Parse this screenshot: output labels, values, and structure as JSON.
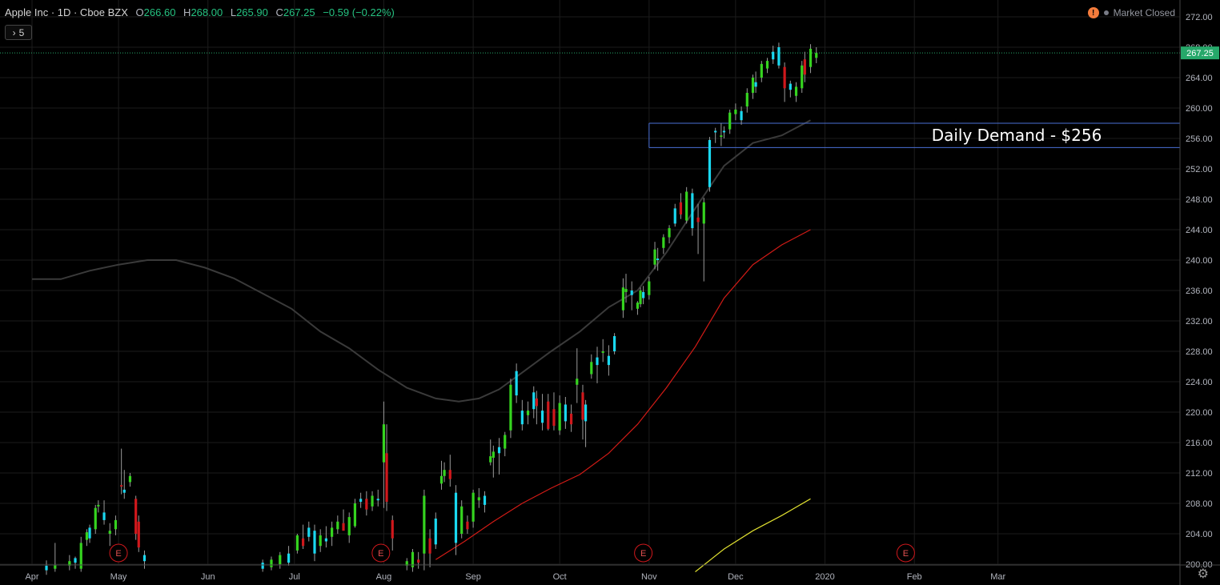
{
  "header": {
    "symbol": "Apple Inc · 1D · Cboe BZX",
    "open_label": "O",
    "open": "266.60",
    "high_label": "H",
    "high": "268.00",
    "low_label": "L",
    "low": "265.90",
    "close_label": "C",
    "close": "267.25",
    "change": "−0.59 (−0.22%)",
    "indicators_count": "5",
    "market_status": "Market Closed",
    "warning_glyph": "!"
  },
  "colors": {
    "up": "#35d41f",
    "up_alt": "#1ad8f0",
    "down": "#d0181c",
    "ma_fast": "#3a3a3a",
    "ma_mid": "#d21b16",
    "ma_slow": "#e0e030",
    "zone": "#4a6fd6",
    "price_tag": "#26a86a"
  },
  "chart_data": {
    "type": "candlestick",
    "title": "",
    "ylim": [
      199,
      273
    ],
    "y_ticks": [
      200,
      204,
      208,
      212,
      216,
      220,
      224,
      228,
      232,
      236,
      240,
      244,
      248,
      252,
      256,
      260,
      264,
      268,
      272
    ],
    "x_labels": [
      {
        "label": "Apr",
        "day": 0
      },
      {
        "label": "May",
        "day": 30
      },
      {
        "label": "Jun",
        "day": 61
      },
      {
        "label": "Jul",
        "day": 91
      },
      {
        "label": "Aug",
        "day": 122
      },
      {
        "label": "Sep",
        "day": 153
      },
      {
        "label": "Oct",
        "day": 183
      },
      {
        "label": "Nov",
        "day": 214
      },
      {
        "label": "Dec",
        "day": 244
      },
      {
        "label": "2020",
        "day": 275
      },
      {
        "label": "Feb",
        "day": 306
      },
      {
        "label": "Mar",
        "day": 335
      }
    ],
    "last_price": "267.25",
    "last_price_value": 267.25,
    "annotation": {
      "text": "Daily Demand - $256",
      "zone_low": 254.8,
      "zone_high": 258.0,
      "start_day": 214
    },
    "earnings": [
      {
        "label": "E",
        "day": 30
      },
      {
        "label": "E",
        "day": 121
      },
      {
        "label": "E",
        "day": 212
      },
      {
        "label": "E",
        "day": 303
      }
    ],
    "candles": [
      {
        "d": 5,
        "o": 199.2,
        "h": 200.5,
        "l": 198.6,
        "c": 199.8
      },
      {
        "d": 8,
        "o": 199.4,
        "h": 202.8,
        "l": 199.0,
        "c": 199.9
      },
      {
        "d": 13,
        "o": 199.8,
        "h": 201.2,
        "l": 199.2,
        "c": 200.4
      },
      {
        "d": 15,
        "o": 200.2,
        "h": 201.0,
        "l": 199.4,
        "c": 200.8
      },
      {
        "d": 17,
        "o": 199.4,
        "h": 203.6,
        "l": 199.0,
        "c": 202.8
      },
      {
        "d": 19,
        "o": 203.2,
        "h": 204.6,
        "l": 202.4,
        "c": 204.2
      },
      {
        "d": 20,
        "o": 203.4,
        "h": 205.2,
        "l": 202.8,
        "c": 204.8
      },
      {
        "d": 22,
        "o": 204.6,
        "h": 207.8,
        "l": 204.0,
        "c": 207.4
      },
      {
        "d": 23,
        "o": 207.6,
        "h": 208.4,
        "l": 206.8,
        "c": 207.8
      },
      {
        "d": 25,
        "o": 206.8,
        "h": 208.4,
        "l": 205.2,
        "c": 205.8
      },
      {
        "d": 27,
        "o": 204.0,
        "h": 205.4,
        "l": 202.4,
        "c": 204.4
      },
      {
        "d": 29,
        "o": 204.6,
        "h": 206.4,
        "l": 203.8,
        "c": 205.8
      },
      {
        "d": 31,
        "o": 210.4,
        "h": 215.2,
        "l": 209.2,
        "c": 210.2
      },
      {
        "d": 32,
        "o": 209.8,
        "h": 212.4,
        "l": 208.6,
        "c": 209.4
      },
      {
        "d": 34,
        "o": 210.8,
        "h": 212.0,
        "l": 210.2,
        "c": 211.6
      },
      {
        "d": 36,
        "o": 208.6,
        "h": 209.0,
        "l": 203.2,
        "c": 204.0
      },
      {
        "d": 37,
        "o": 205.6,
        "h": 206.4,
        "l": 201.6,
        "c": 202.2
      },
      {
        "d": 39,
        "o": 201.2,
        "h": 201.8,
        "l": 199.4,
        "c": 200.4
      },
      {
        "d": 80,
        "o": 199.4,
        "h": 200.6,
        "l": 199.0,
        "c": 200.2
      },
      {
        "d": 83,
        "o": 199.6,
        "h": 201.0,
        "l": 199.2,
        "c": 200.6
      },
      {
        "d": 86,
        "o": 200.0,
        "h": 201.6,
        "l": 199.4,
        "c": 201.2
      },
      {
        "d": 89,
        "o": 200.2,
        "h": 202.4,
        "l": 199.8,
        "c": 201.4
      },
      {
        "d": 92,
        "o": 201.8,
        "h": 204.0,
        "l": 201.4,
        "c": 203.8
      },
      {
        "d": 94,
        "o": 203.4,
        "h": 205.2,
        "l": 202.0,
        "c": 202.4
      },
      {
        "d": 96,
        "o": 203.6,
        "h": 205.6,
        "l": 203.0,
        "c": 204.8
      },
      {
        "d": 98,
        "o": 204.4,
        "h": 205.2,
        "l": 200.4,
        "c": 201.4
      },
      {
        "d": 100,
        "o": 202.4,
        "h": 204.6,
        "l": 201.6,
        "c": 203.8
      },
      {
        "d": 102,
        "o": 203.0,
        "h": 205.0,
        "l": 202.2,
        "c": 203.4
      },
      {
        "d": 104,
        "o": 203.6,
        "h": 205.6,
        "l": 202.4,
        "c": 204.8
      },
      {
        "d": 106,
        "o": 204.6,
        "h": 206.4,
        "l": 204.0,
        "c": 205.6
      },
      {
        "d": 108,
        "o": 205.4,
        "h": 207.2,
        "l": 204.6,
        "c": 204.4
      },
      {
        "d": 110,
        "o": 203.8,
        "h": 206.8,
        "l": 202.8,
        "c": 206.2
      },
      {
        "d": 112,
        "o": 205.0,
        "h": 208.6,
        "l": 204.8,
        "c": 208.0
      },
      {
        "d": 114,
        "o": 208.2,
        "h": 209.4,
        "l": 207.4,
        "c": 208.6
      },
      {
        "d": 116,
        "o": 208.6,
        "h": 209.6,
        "l": 206.4,
        "c": 207.2
      },
      {
        "d": 118,
        "o": 207.6,
        "h": 209.6,
        "l": 207.0,
        "c": 209.0
      },
      {
        "d": 120,
        "o": 208.4,
        "h": 209.8,
        "l": 207.6,
        "c": 208.6
      },
      {
        "d": 122,
        "o": 213.4,
        "h": 221.4,
        "l": 207.4,
        "c": 218.4
      },
      {
        "d": 123,
        "o": 214.6,
        "h": 218.4,
        "l": 207.0,
        "c": 208.2
      },
      {
        "d": 125,
        "o": 205.8,
        "h": 206.4,
        "l": 201.8,
        "c": 203.4
      },
      {
        "d": 130,
        "o": 199.8,
        "h": 200.8,
        "l": 199.2,
        "c": 200.4
      },
      {
        "d": 132,
        "o": 199.6,
        "h": 202.0,
        "l": 199.0,
        "c": 201.6
      },
      {
        "d": 134,
        "o": 200.6,
        "h": 201.6,
        "l": 199.4,
        "c": 200.2
      },
      {
        "d": 136,
        "o": 201.4,
        "h": 209.8,
        "l": 199.2,
        "c": 209.0
      },
      {
        "d": 138,
        "o": 203.4,
        "h": 204.6,
        "l": 199.6,
        "c": 201.4
      },
      {
        "d": 140,
        "o": 202.6,
        "h": 206.8,
        "l": 202.0,
        "c": 206.0
      },
      {
        "d": 142,
        "o": 210.6,
        "h": 213.6,
        "l": 209.8,
        "c": 211.6
      },
      {
        "d": 143,
        "o": 211.6,
        "h": 213.4,
        "l": 210.8,
        "c": 212.4
      },
      {
        "d": 145,
        "o": 212.4,
        "h": 214.4,
        "l": 210.2,
        "c": 211.2
      },
      {
        "d": 147,
        "o": 209.4,
        "h": 210.4,
        "l": 201.2,
        "c": 202.8
      },
      {
        "d": 149,
        "o": 204.0,
        "h": 208.4,
        "l": 203.4,
        "c": 207.6
      },
      {
        "d": 151,
        "o": 205.6,
        "h": 206.4,
        "l": 204.0,
        "c": 204.6
      },
      {
        "d": 153,
        "o": 205.6,
        "h": 209.8,
        "l": 204.8,
        "c": 209.4
      },
      {
        "d": 155,
        "o": 208.4,
        "h": 210.0,
        "l": 207.4,
        "c": 208.8
      },
      {
        "d": 157,
        "o": 207.8,
        "h": 209.6,
        "l": 206.8,
        "c": 209.0
      },
      {
        "d": 159,
        "o": 213.4,
        "h": 216.4,
        "l": 213.0,
        "c": 214.2
      },
      {
        "d": 160,
        "o": 214.0,
        "h": 215.6,
        "l": 211.4,
        "c": 214.8
      },
      {
        "d": 162,
        "o": 214.6,
        "h": 216.6,
        "l": 211.8,
        "c": 215.4
      },
      {
        "d": 164,
        "o": 215.2,
        "h": 217.4,
        "l": 214.2,
        "c": 217.0
      },
      {
        "d": 166,
        "o": 217.6,
        "h": 224.4,
        "l": 216.6,
        "c": 223.6
      },
      {
        "d": 168,
        "o": 222.2,
        "h": 226.4,
        "l": 221.2,
        "c": 225.4
      },
      {
        "d": 170,
        "o": 220.2,
        "h": 221.6,
        "l": 217.6,
        "c": 218.4
      },
      {
        "d": 172,
        "o": 219.6,
        "h": 221.4,
        "l": 218.4,
        "c": 220.2
      },
      {
        "d": 174,
        "o": 220.4,
        "h": 223.4,
        "l": 219.2,
        "c": 222.6
      },
      {
        "d": 175,
        "o": 221.8,
        "h": 222.8,
        "l": 218.4,
        "c": 220.8
      },
      {
        "d": 177,
        "o": 220.2,
        "h": 222.4,
        "l": 217.6,
        "c": 218.6
      },
      {
        "d": 179,
        "o": 221.4,
        "h": 222.4,
        "l": 217.6,
        "c": 217.8
      },
      {
        "d": 181,
        "o": 220.4,
        "h": 222.6,
        "l": 217.6,
        "c": 218.2
      },
      {
        "d": 183,
        "o": 217.6,
        "h": 222.2,
        "l": 217.0,
        "c": 221.2
      },
      {
        "d": 185,
        "o": 218.8,
        "h": 222.0,
        "l": 217.8,
        "c": 221.0
      },
      {
        "d": 187,
        "o": 219.8,
        "h": 221.0,
        "l": 217.4,
        "c": 218.4
      },
      {
        "d": 189,
        "o": 223.6,
        "h": 228.4,
        "l": 221.2,
        "c": 224.4
      },
      {
        "d": 191,
        "o": 222.6,
        "h": 223.6,
        "l": 216.4,
        "c": 219.0
      },
      {
        "d": 192,
        "o": 221.0,
        "h": 221.6,
        "l": 215.4,
        "c": 218.8
      },
      {
        "d": 194,
        "o": 225.0,
        "h": 227.6,
        "l": 224.4,
        "c": 226.6
      },
      {
        "d": 196,
        "o": 226.2,
        "h": 228.6,
        "l": 223.8,
        "c": 227.2
      },
      {
        "d": 198,
        "o": 227.8,
        "h": 229.6,
        "l": 226.6,
        "c": 228.0
      },
      {
        "d": 200,
        "o": 227.4,
        "h": 228.8,
        "l": 224.8,
        "c": 226.2
      },
      {
        "d": 202,
        "o": 228.0,
        "h": 230.4,
        "l": 227.6,
        "c": 230.0
      },
      {
        "d": 205,
        "o": 233.4,
        "h": 237.6,
        "l": 232.4,
        "c": 236.4
      },
      {
        "d": 206,
        "o": 235.8,
        "h": 238.2,
        "l": 234.4,
        "c": 236.2
      },
      {
        "d": 208,
        "o": 235.4,
        "h": 237.2,
        "l": 233.4,
        "c": 236.0
      },
      {
        "d": 210,
        "o": 233.6,
        "h": 234.6,
        "l": 232.8,
        "c": 234.4
      },
      {
        "d": 211,
        "o": 234.2,
        "h": 236.4,
        "l": 233.8,
        "c": 236.0
      },
      {
        "d": 212,
        "o": 235.0,
        "h": 236.6,
        "l": 234.2,
        "c": 235.8
      },
      {
        "d": 214,
        "o": 235.4,
        "h": 237.8,
        "l": 234.8,
        "c": 237.2
      },
      {
        "d": 216,
        "o": 239.4,
        "h": 242.4,
        "l": 238.8,
        "c": 241.4
      },
      {
        "d": 217,
        "o": 240.0,
        "h": 241.6,
        "l": 238.6,
        "c": 240.2
      },
      {
        "d": 219,
        "o": 241.6,
        "h": 243.4,
        "l": 240.8,
        "c": 243.0
      },
      {
        "d": 221,
        "o": 243.0,
        "h": 244.6,
        "l": 242.2,
        "c": 244.2
      },
      {
        "d": 223,
        "o": 244.8,
        "h": 247.4,
        "l": 244.4,
        "c": 246.8
      },
      {
        "d": 225,
        "o": 247.6,
        "h": 248.8,
        "l": 245.4,
        "c": 246.0
      },
      {
        "d": 227,
        "o": 245.2,
        "h": 249.6,
        "l": 244.8,
        "c": 249.0
      },
      {
        "d": 229,
        "o": 248.8,
        "h": 249.4,
        "l": 243.2,
        "c": 244.2
      },
      {
        "d": 231,
        "o": 245.6,
        "h": 247.4,
        "l": 240.8,
        "c": 245.0
      },
      {
        "d": 233,
        "o": 244.8,
        "h": 248.2,
        "l": 237.2,
        "c": 247.6
      },
      {
        "d": 235,
        "o": 249.6,
        "h": 256.2,
        "l": 249.0,
        "c": 255.8
      },
      {
        "d": 237,
        "o": 257.0,
        "h": 257.4,
        "l": 255.4,
        "c": 256.8
      },
      {
        "d": 239,
        "o": 256.2,
        "h": 258.0,
        "l": 255.0,
        "c": 256.4
      },
      {
        "d": 240,
        "o": 256.8,
        "h": 257.6,
        "l": 256.0,
        "c": 257.0
      },
      {
        "d": 242,
        "o": 257.2,
        "h": 259.8,
        "l": 256.6,
        "c": 259.4
      },
      {
        "d": 244,
        "o": 259.2,
        "h": 260.6,
        "l": 258.4,
        "c": 259.8
      },
      {
        "d": 246,
        "o": 258.4,
        "h": 260.2,
        "l": 257.8,
        "c": 259.6
      },
      {
        "d": 248,
        "o": 260.2,
        "h": 262.6,
        "l": 259.4,
        "c": 262.0
      },
      {
        "d": 250,
        "o": 262.0,
        "h": 264.4,
        "l": 261.2,
        "c": 264.0
      },
      {
        "d": 251,
        "o": 262.8,
        "h": 264.8,
        "l": 262.0,
        "c": 263.4
      },
      {
        "d": 253,
        "o": 264.0,
        "h": 266.2,
        "l": 263.4,
        "c": 265.8
      },
      {
        "d": 255,
        "o": 265.2,
        "h": 266.6,
        "l": 264.6,
        "c": 266.2
      },
      {
        "d": 257,
        "o": 266.4,
        "h": 268.2,
        "l": 265.8,
        "c": 267.4
      },
      {
        "d": 259,
        "o": 268.0,
        "h": 268.6,
        "l": 265.2,
        "c": 265.6
      },
      {
        "d": 261,
        "o": 265.4,
        "h": 266.0,
        "l": 260.8,
        "c": 262.6
      },
      {
        "d": 263,
        "o": 262.4,
        "h": 263.6,
        "l": 261.4,
        "c": 263.2
      },
      {
        "d": 265,
        "o": 261.6,
        "h": 263.4,
        "l": 260.8,
        "c": 262.8
      },
      {
        "d": 267,
        "o": 262.6,
        "h": 266.2,
        "l": 262.0,
        "c": 265.6
      },
      {
        "d": 268,
        "o": 266.4,
        "h": 267.4,
        "l": 263.4,
        "c": 264.4
      },
      {
        "d": 270,
        "o": 265.4,
        "h": 268.4,
        "l": 264.6,
        "c": 267.8
      },
      {
        "d": 272,
        "o": 266.6,
        "h": 268.0,
        "l": 265.9,
        "c": 267.25
      }
    ],
    "series": [
      {
        "type": "line",
        "color": "#3a3a3a",
        "points": [
          [
            0,
            237.5
          ],
          [
            10,
            237.5
          ],
          [
            20,
            238.6
          ],
          [
            30,
            239.4
          ],
          [
            40,
            240.0
          ],
          [
            50,
            240.0
          ],
          [
            60,
            239.0
          ],
          [
            70,
            237.6
          ],
          [
            80,
            235.6
          ],
          [
            90,
            233.6
          ],
          [
            100,
            230.6
          ],
          [
            110,
            228.4
          ],
          [
            120,
            225.6
          ],
          [
            130,
            223.2
          ],
          [
            140,
            221.8
          ],
          [
            148,
            221.4
          ],
          [
            155,
            221.8
          ],
          [
            162,
            223.0
          ],
          [
            170,
            225.2
          ],
          [
            180,
            228.0
          ],
          [
            190,
            230.6
          ],
          [
            200,
            233.8
          ],
          [
            210,
            236.0
          ],
          [
            220,
            241.0
          ],
          [
            230,
            246.8
          ],
          [
            240,
            252.4
          ],
          [
            250,
            255.4
          ],
          [
            260,
            256.4
          ],
          [
            270,
            258.4
          ]
        ]
      },
      {
        "type": "line",
        "color": "#d21b16",
        "points": [
          [
            140,
            200.6
          ],
          [
            150,
            203.0
          ],
          [
            160,
            205.6
          ],
          [
            170,
            208.0
          ],
          [
            180,
            210.0
          ],
          [
            190,
            211.8
          ],
          [
            200,
            214.6
          ],
          [
            210,
            218.4
          ],
          [
            220,
            223.2
          ],
          [
            230,
            228.6
          ],
          [
            240,
            235.0
          ],
          [
            250,
            239.4
          ],
          [
            260,
            242.0
          ],
          [
            270,
            244.0
          ]
        ]
      },
      {
        "type": "line",
        "color": "#e0e030",
        "points": [
          [
            230,
            199.0
          ],
          [
            240,
            202.0
          ],
          [
            250,
            204.4
          ],
          [
            260,
            206.4
          ],
          [
            270,
            208.6
          ]
        ]
      }
    ]
  }
}
